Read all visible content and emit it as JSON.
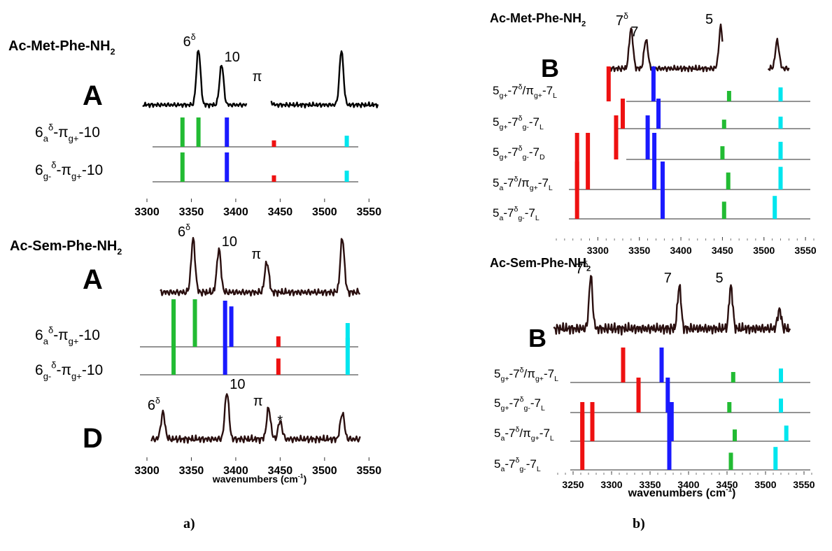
{
  "captions": {
    "a": "a)",
    "b": "b)"
  },
  "axis_title": {
    "main": "wavenumbers (cm",
    "sup": "-1",
    "close": ")"
  },
  "chart_data": [
    {
      "type": "bar",
      "title": "Ac-Met-Phe-NH",
      "title_sub": "2",
      "panel_letter": "A",
      "xlim": [
        3300,
        3560
      ],
      "ticks": [
        3300,
        3350,
        3400,
        3450,
        3500,
        3550
      ],
      "spectrum_segments": [
        [
          3295,
          3412
        ],
        [
          3440,
          3560
        ]
      ],
      "peaks": [
        {
          "x": 3358,
          "label": "6",
          "sup": "δ"
        },
        {
          "x": 3384,
          "label": "10"
        },
        {
          "x": 3436,
          "label": "π"
        },
        {
          "x": 3519
        }
      ],
      "conformers": [
        {
          "label": {
            "base": "6",
            "sub1": "a",
            "sup1": "δ",
            "mid": "-π",
            "sub2": "g+",
            "tail": "-10"
          },
          "sticks": [
            {
              "x": 3340,
              "h": 1.0,
              "color": "#22bb33"
            },
            {
              "x": 3358,
              "h": 1.0,
              "color": "#22bb33"
            },
            {
              "x": 3390,
              "h": 1.0,
              "color": "#1a1aff"
            },
            {
              "x": 3443,
              "h": 0.22,
              "color": "#ee1111"
            },
            {
              "x": 3525,
              "h": 0.38,
              "color": "#00e6ee"
            }
          ]
        },
        {
          "label": {
            "base": "6",
            "sub1": "g-",
            "sup1": "δ",
            "mid": "-π",
            "sub2": "g+",
            "tail": "-10"
          },
          "sticks": [
            {
              "x": 3340,
              "h": 1.0,
              "color": "#22bb33"
            },
            {
              "x": 3390,
              "h": 1.0,
              "color": "#1a1aff"
            },
            {
              "x": 3443,
              "h": 0.22,
              "color": "#ee1111"
            },
            {
              "x": 3525,
              "h": 0.38,
              "color": "#00e6ee"
            }
          ]
        }
      ]
    },
    {
      "type": "bar",
      "title": "Ac-Sem-Phe-NH",
      "title_sub": "2",
      "panel_letter": "A",
      "xlim": [
        3300,
        3560
      ],
      "ticks": [
        3300,
        3350,
        3400,
        3450,
        3500,
        3550
      ],
      "spectrum_segments": [
        [
          3315,
          3540
        ]
      ],
      "peaks": [
        {
          "x": 3352,
          "label": "6",
          "sup": "δ"
        },
        {
          "x": 3381,
          "label": "10"
        },
        {
          "x": 3435,
          "label": "π"
        },
        {
          "x": 3520
        }
      ],
      "conformers": [
        {
          "label": {
            "base": "6",
            "sub1": "a",
            "sup1": "δ",
            "mid": "-π",
            "sub2": "g+",
            "tail": "-10"
          },
          "sticks": [
            {
              "x": 3330,
              "h": 1.0,
              "color": "#22bb33"
            },
            {
              "x": 3354,
              "h": 1.0,
              "color": "#22bb33"
            },
            {
              "x": 3395,
              "h": 0.85,
              "color": "#1a1aff"
            },
            {
              "x": 3448,
              "h": 0.22,
              "color": "#ee1111"
            },
            {
              "x": 3526,
              "h": 0.5,
              "color": "#00e6ee"
            }
          ]
        },
        {
          "label": {
            "base": "6",
            "sub1": "g-",
            "sup1": "δ",
            "mid": "-π",
            "sub2": "g+",
            "tail": "-10"
          },
          "sticks": [
            {
              "x": 3330,
              "h": 1.0,
              "color": "#22bb33"
            },
            {
              "x": 3388,
              "h": 1.0,
              "color": "#1a1aff"
            },
            {
              "x": 3448,
              "h": 0.22,
              "color": "#ee1111"
            },
            {
              "x": 3526,
              "h": 0.5,
              "color": "#00e6ee"
            }
          ]
        }
      ]
    },
    {
      "type": "line",
      "panel_letter": "D",
      "xlim": [
        3300,
        3560
      ],
      "ticks": [
        3300,
        3350,
        3400,
        3450,
        3500,
        3550
      ],
      "xlabel": "wavenumbers (cm-1)",
      "spectrum_segments": [
        [
          3305,
          3540
        ]
      ],
      "peaks": [
        {
          "x": 3318,
          "label": "6",
          "sup": "δ"
        },
        {
          "x": 3390,
          "label": "10"
        },
        {
          "x": 3437,
          "label": "π"
        },
        {
          "x": 3450,
          "label": "*"
        },
        {
          "x": 3520
        }
      ]
    },
    {
      "type": "bar",
      "title": "Ac-Met-Phe-NH",
      "title_sub": "2",
      "panel_letter": "B",
      "xlim": [
        3250,
        3560
      ],
      "ticks": [
        3300,
        3350,
        3400,
        3450,
        3500,
        3550
      ],
      "spectrum_segments": [
        [
          3315,
          3450
        ],
        [
          3505,
          3530
        ]
      ],
      "peaks": [
        {
          "x": 3340,
          "label": "7",
          "sup": "δ"
        },
        {
          "x": 3358,
          "label": "7"
        },
        {
          "x": 3448,
          "label": "5"
        },
        {
          "x": 3516
        }
      ],
      "conformers": [
        {
          "label": {
            "base": "5",
            "sub1": "g+",
            "mid": "-7",
            "sup2": "δ",
            "mid2": "/π",
            "sub3": "g+",
            "tail": "-7",
            "sub4": "L"
          },
          "sticks": [
            {
              "x": 3313,
              "h": 1.0,
              "color": "#ee1111"
            },
            {
              "x": 3367,
              "h": 1.0,
              "color": "#1a1aff"
            },
            {
              "x": 3458,
              "h": 0.3,
              "color": "#22bb33"
            },
            {
              "x": 3520,
              "h": 0.4,
              "color": "#00e6ee"
            }
          ]
        },
        {
          "label": {
            "base": "5",
            "sub1": "g+",
            "mid": "-7",
            "sup2": "δ",
            "sub2": "g-",
            "tail": "-7",
            "sub4": "L"
          },
          "sticks": [
            {
              "x": 3330,
              "h": 1.0,
              "color": "#ee1111"
            },
            {
              "x": 3373,
              "h": 1.0,
              "color": "#1a1aff"
            },
            {
              "x": 3452,
              "h": 0.3,
              "color": "#22bb33"
            },
            {
              "x": 3520,
              "h": 0.4,
              "color": "#00e6ee"
            }
          ]
        },
        {
          "label": {
            "base": "5",
            "sub1": "g+",
            "mid": "-7",
            "sup2": "δ",
            "sub2": "g-",
            "tail": "-7",
            "sub4": "D"
          },
          "sticks": [
            {
              "x": 3322,
              "h": 1.0,
              "color": "#ee1111"
            },
            {
              "x": 3360,
              "h": 1.0,
              "color": "#1a1aff"
            },
            {
              "x": 3450,
              "h": 0.3,
              "color": "#22bb33"
            },
            {
              "x": 3520,
              "h": 0.4,
              "color": "#00e6ee"
            }
          ]
        },
        {
          "label": {
            "base": "5",
            "sub1": "a",
            "mid": "-7",
            "sup2": "δ",
            "mid2": "/π",
            "sub3": "g+",
            "tail": "-7",
            "sub4": "L"
          },
          "sticks": [
            {
              "x": 3275,
              "h": 1.0,
              "color": "#ee1111"
            },
            {
              "x": 3288,
              "h": 1.0,
              "color": "#ee1111"
            },
            {
              "x": 3368,
              "h": 1.0,
              "color": "#1a1aff"
            },
            {
              "x": 3457,
              "h": 0.3,
              "color": "#22bb33"
            },
            {
              "x": 3520,
              "h": 0.4,
              "color": "#00e6ee"
            }
          ]
        },
        {
          "label": {
            "base": "5",
            "sub1": "a",
            "mid": "-7",
            "sup2": "δ",
            "sub2": "g-",
            "tail": "-7",
            "sub4": "L"
          },
          "sticks": [
            {
              "x": 3275,
              "h": 1.0,
              "color": "#ee1111"
            },
            {
              "x": 3378,
              "h": 1.0,
              "color": "#1a1aff"
            },
            {
              "x": 3452,
              "h": 0.3,
              "color": "#22bb33"
            },
            {
              "x": 3513,
              "h": 0.4,
              "color": "#00e6ee"
            }
          ]
        }
      ]
    },
    {
      "type": "bar",
      "title": "Ac-Sem-Phe-NH",
      "title_sub": "2",
      "panel_letter": "B",
      "xlim": [
        3230,
        3560
      ],
      "ticks": [
        3250,
        3300,
        3350,
        3400,
        3450,
        3500,
        3550
      ],
      "xlabel": "wavenumbers (cm-1)",
      "spectrum_segments": [
        [
          3225,
          3532
        ]
      ],
      "peaks": [
        {
          "x": 3273,
          "label": "7",
          "sup": "δ"
        },
        {
          "x": 3388,
          "label": "7"
        },
        {
          "x": 3455,
          "label": "5"
        },
        {
          "x": 3518
        }
      ],
      "conformers": [
        {
          "label": {
            "base": "5",
            "sub1": "g+",
            "mid": "-7",
            "sup2": "δ",
            "mid2": "/π",
            "sub3": "g+",
            "tail": "-7",
            "sub4": "L"
          },
          "sticks": [
            {
              "x": 3315,
              "h": 1.0,
              "color": "#ee1111"
            },
            {
              "x": 3365,
              "h": 1.0,
              "color": "#1a1aff"
            },
            {
              "x": 3458,
              "h": 0.3,
              "color": "#22bb33"
            },
            {
              "x": 3520,
              "h": 0.4,
              "color": "#00e6ee"
            }
          ]
        },
        {
          "label": {
            "base": "5",
            "sub1": "g+",
            "mid": "-7",
            "sup2": "δ",
            "sub2": "g-",
            "tail": "-7",
            "sub4": "L"
          },
          "sticks": [
            {
              "x": 3335,
              "h": 1.0,
              "color": "#ee1111"
            },
            {
              "x": 3373,
              "h": 1.0,
              "color": "#1a1aff"
            },
            {
              "x": 3453,
              "h": 0.3,
              "color": "#22bb33"
            },
            {
              "x": 3520,
              "h": 0.4,
              "color": "#00e6ee"
            }
          ]
        },
        {
          "label": {
            "base": "5",
            "sub1": "a",
            "mid": "-7",
            "sup2": "δ",
            "mid2": "/π",
            "sub3": "g+",
            "tail": "-7",
            "sub4": "L"
          },
          "sticks": [
            {
              "x": 3262,
              "h": 1.0,
              "color": "#ee1111"
            },
            {
              "x": 3275,
              "h": 1.0,
              "color": "#ee1111"
            },
            {
              "x": 3378,
              "h": 1.0,
              "color": "#1a1aff"
            },
            {
              "x": 3460,
              "h": 0.3,
              "color": "#22bb33"
            },
            {
              "x": 3527,
              "h": 0.4,
              "color": "#00e6ee"
            }
          ]
        },
        {
          "label": {
            "base": "5",
            "sub1": "a",
            "mid": "-7",
            "sup2": "δ",
            "sub2": "g-",
            "tail": "-7",
            "sub4": "L"
          },
          "sticks": [
            {
              "x": 3262,
              "h": 1.0,
              "color": "#ee1111"
            },
            {
              "x": 3375,
              "h": 1.0,
              "color": "#1a1aff"
            },
            {
              "x": 3455,
              "h": 0.3,
              "color": "#22bb33"
            },
            {
              "x": 3513,
              "h": 0.4,
              "color": "#00e6ee"
            }
          ]
        }
      ]
    }
  ]
}
